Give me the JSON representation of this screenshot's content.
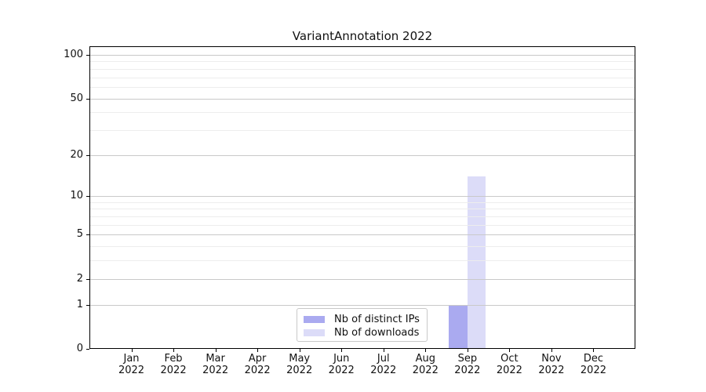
{
  "title": "VariantAnnotation 2022",
  "chart_data": {
    "type": "bar",
    "title": "VariantAnnotation 2022",
    "categories": [
      "Jan 2022",
      "Feb 2022",
      "Mar 2022",
      "Apr 2022",
      "May 2022",
      "Jun 2022",
      "Jul 2022",
      "Aug 2022",
      "Sep 2022",
      "Oct 2022",
      "Nov 2022",
      "Dec 2022"
    ],
    "x_tick_line1": [
      "Jan",
      "Feb",
      "Mar",
      "Apr",
      "May",
      "Jun",
      "Jul",
      "Aug",
      "Sep",
      "Oct",
      "Nov",
      "Dec"
    ],
    "x_tick_line2": "2022",
    "series": [
      {
        "name": "Nb of distinct IPs",
        "color": "#aaaaf0",
        "values": [
          0,
          0,
          0,
          0,
          0,
          0,
          0,
          0,
          1,
          0,
          0,
          0
        ]
      },
      {
        "name": "Nb of downloads",
        "color": "#dcdcf8",
        "values": [
          0,
          0,
          0,
          0,
          0,
          0,
          0,
          0,
          14,
          0,
          0,
          0
        ]
      }
    ],
    "y_scale": "log10(1+value)",
    "y_major_ticks": [
      0,
      1,
      2,
      5,
      10,
      20,
      50,
      100
    ],
    "y_minor_ticks": [
      3,
      4,
      6,
      7,
      8,
      9,
      30,
      40,
      60,
      70,
      80,
      90
    ],
    "ylim": [
      0,
      100
    ],
    "grid": "on",
    "legend_position": "bottom-center",
    "xlabel": "",
    "ylabel": ""
  },
  "colors": {
    "distinct_ips_bar": "#aaaaf0",
    "downloads_bar": "#dcdcf8",
    "major_gridline": "#c9c9c9",
    "minor_gridline": "#ededed",
    "axis_spine": "#000000",
    "legend_border": "#c9c9c9",
    "background": "#ffffff"
  }
}
